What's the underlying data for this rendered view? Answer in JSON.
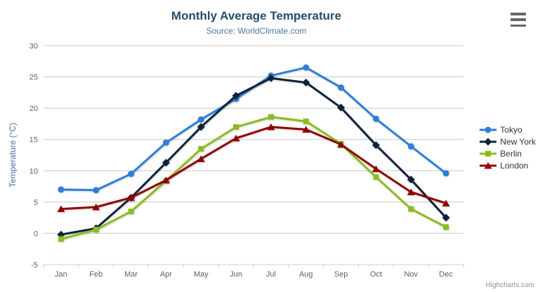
{
  "chart_data": {
    "type": "line",
    "title": "Monthly Average Temperature",
    "subtitle": "Source: WorldClimate.com",
    "categories": [
      "Jan",
      "Feb",
      "Mar",
      "Apr",
      "May",
      "Jun",
      "Jul",
      "Aug",
      "Sep",
      "Oct",
      "Nov",
      "Dec"
    ],
    "series": [
      {
        "name": "Tokyo",
        "color": "#2f7ed8",
        "marker": "circle",
        "values": [
          7.0,
          6.9,
          9.5,
          14.5,
          18.2,
          21.5,
          25.2,
          26.5,
          23.3,
          18.3,
          13.9,
          9.6
        ]
      },
      {
        "name": "New York",
        "color": "#0d233a",
        "marker": "diamond",
        "values": [
          -0.2,
          0.8,
          5.7,
          11.3,
          17.0,
          22.0,
          24.8,
          24.1,
          20.1,
          14.1,
          8.6,
          2.5
        ]
      },
      {
        "name": "Berlin",
        "color": "#8bbc21",
        "marker": "square",
        "values": [
          -0.9,
          0.6,
          3.5,
          8.4,
          13.5,
          17.0,
          18.6,
          17.9,
          14.3,
          9.0,
          3.9,
          1.0
        ]
      },
      {
        "name": "London",
        "color": "#910000",
        "marker": "triangle",
        "values": [
          3.9,
          4.2,
          5.7,
          8.5,
          11.9,
          15.2,
          17.0,
          16.6,
          14.2,
          10.3,
          6.6,
          4.8
        ]
      }
    ],
    "xlabel": "",
    "ylabel": "Temperature (°C)",
    "ylim": [
      -5,
      30
    ],
    "ytick_step": 5,
    "grid": true,
    "legend_position": "right"
  },
  "menu": {
    "icon": "hamburger-menu-icon"
  },
  "credits": {
    "label": "Highcharts.com"
  },
  "style_colors": {
    "title": "#274b6d",
    "subtitle": "#4d759e",
    "axis_title": "#4572a7",
    "axis_labels": "#606060",
    "grid_line": "#c8c8c8",
    "axis_line": "#c0d0e0",
    "legend_text": "#333333",
    "menu_icon": "#666666",
    "credits_text": "#909090"
  }
}
